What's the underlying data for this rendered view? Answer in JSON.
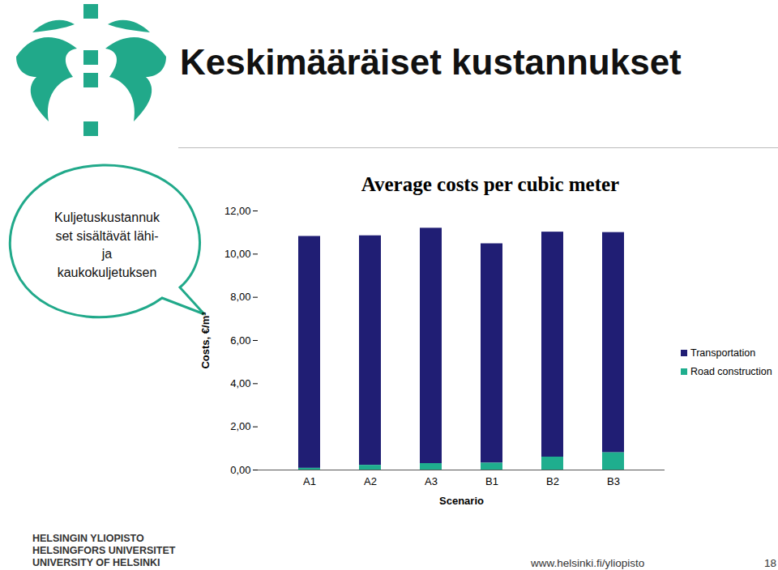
{
  "slide": {
    "title": "Keskimääräiset kustannukset",
    "bubble_lines": [
      "Kuljetuskustannuk",
      "set sisältävät lähi-",
      "ja",
      "kaukokuljetuksen"
    ],
    "footer_lines": [
      "HELSINGIN YLIOPISTO",
      "HELSINGFORS UNIVERSITET",
      "UNIVERSITY OF HELSINKI"
    ],
    "url": "www.helsinki.fi/yliopisto",
    "page": "18"
  },
  "chart_data": {
    "type": "bar",
    "stacked": true,
    "title": "Average costs per cubic meter",
    "x_label": "Scenario",
    "y_label": "Costs, €/m³",
    "categories": [
      "A1",
      "A2",
      "A3",
      "B1",
      "B2",
      "B3"
    ],
    "series": [
      {
        "name": "Transportation",
        "color": "#201e74",
        "values": [
          10.74,
          10.63,
          10.9,
          10.16,
          10.42,
          10.2
        ]
      },
      {
        "name": "Road construction",
        "color": "#1fae8e",
        "values": [
          0.08,
          0.22,
          0.3,
          0.32,
          0.6,
          0.8
        ]
      }
    ],
    "ylim": [
      0,
      12
    ],
    "yticks": [
      {
        "value": 0,
        "label": "0,00"
      },
      {
        "value": 2,
        "label": "2,00"
      },
      {
        "value": 4,
        "label": "4,00"
      },
      {
        "value": 6,
        "label": "6,00"
      },
      {
        "value": 8,
        "label": "8,00"
      },
      {
        "value": 10,
        "label": "10,00"
      },
      {
        "value": 12,
        "label": "12,00"
      }
    ],
    "grid": false,
    "legend": "right"
  }
}
